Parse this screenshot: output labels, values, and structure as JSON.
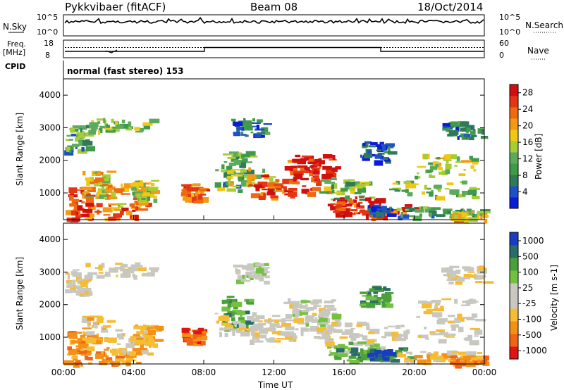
{
  "header": {
    "title": "Pykkvibaer (fitACF)",
    "beam": "Beam 08",
    "date": "18/Oct/2014"
  },
  "strips": {
    "nsky_label": "N.Sky",
    "nsky_ticks": [
      "10^5",
      "10^0"
    ],
    "nsearch_label": "N.Search",
    "nsearch_ticks": [
      "10^5",
      "10^0"
    ],
    "freq_label": "Freq.",
    "freq_unit": "[MHz]",
    "freq_ticks": [
      "18",
      "8"
    ],
    "nave_label": "Nave",
    "nave_ticks": [
      "60",
      "0"
    ],
    "cpid_label": "CPID",
    "cpid_text": "normal (fast stereo) 153"
  },
  "colors": {
    "power_scale": [
      "#0b1cd8",
      "#1f50c8",
      "#2f7a58",
      "#3f9a4a",
      "#5cab5c",
      "#a6cc36",
      "#f0c814",
      "#f29a14",
      "#ef6a0e",
      "#e53612",
      "#d01010"
    ],
    "velocity_scale": [
      "#e01414",
      "#f06414",
      "#f49016",
      "#f6bc32",
      "#c8c8c0",
      "#c8c8c0",
      "#74c040",
      "#4ca03c",
      "#2a6c6a",
      "#1a3cc0"
    ]
  },
  "chart_data": [
    {
      "type": "heatmap",
      "name": "power",
      "ylabel": "Slant Range [km]",
      "yticks": [
        "1000",
        "2000",
        "3000",
        "4000"
      ],
      "ylim": [
        180,
        4500
      ],
      "xticks": [
        "00:00",
        "04:00",
        "08:00",
        "12:00",
        "16:00",
        "20:00",
        "00:00"
      ],
      "colorbar": {
        "label": "Power [dB]",
        "ticks": [
          "4",
          "8",
          "12",
          "16",
          "20",
          "24",
          "28"
        ],
        "range": [
          0,
          30
        ]
      },
      "grid": false
    },
    {
      "type": "heatmap",
      "name": "velocity",
      "ylabel": "Slant Range [km]",
      "yticks": [
        "1000",
        "2000",
        "3000",
        "4000"
      ],
      "ylim": [
        180,
        4500
      ],
      "xlabel": "Time UT",
      "xticks": [
        "00:00",
        "04:00",
        "08:00",
        "12:00",
        "16:00",
        "20:00",
        "00:00"
      ],
      "colorbar": {
        "label": "Velocity [m s-1]",
        "ticks": [
          "1000",
          "500",
          "100",
          "25",
          "-25",
          "-100",
          "-500",
          "-1000"
        ]
      },
      "grid": false
    }
  ]
}
